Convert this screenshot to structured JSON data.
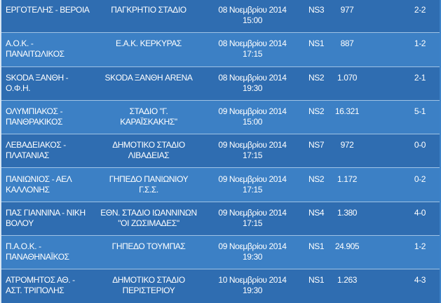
{
  "table": {
    "rows": [
      {
        "match": [
          "ΕΡΓΟΤΕΛΗΣ - ΒΕΡΟΙΑ"
        ],
        "stadium": [
          "ΠΑΓΚΡΗΤΙΟ ΣΤΑΔΙΟ"
        ],
        "date": "08 Νοεμβρίου 2014",
        "time": "15:00",
        "code": "NS3",
        "attendance": "977",
        "score": "2-2"
      },
      {
        "match": [
          "Α.Ο.Κ. -",
          "ΠΑΝΑΙΤΩΛΙΚΟΣ"
        ],
        "stadium": [
          "Ε.Α.Κ. ΚΕΡΚΥΡΑΣ"
        ],
        "date": "08 Νοεμβρίου 2014",
        "time": "17:15",
        "code": "NS1",
        "attendance": "887",
        "score": "1-2"
      },
      {
        "match": [
          "SKODA ΞΑΝΘΗ -",
          "Ο.Φ.Η."
        ],
        "stadium": [
          "SKODA ΞΑΝΘΗ ARENA"
        ],
        "date": "08 Νοεμβρίου 2014",
        "time": "19:30",
        "code": "NS2",
        "attendance": "1.070",
        "score": "2-1"
      },
      {
        "match": [
          "ΟΛΥΜΠΙΑΚΟΣ -",
          "ΠΑΝΘΡΑΚΙΚΟΣ"
        ],
        "stadium": [
          "ΣΤΑΔΙΟ \"Γ.",
          "ΚΑΡΑΪΣΚΑΚΗΣ\""
        ],
        "date": "09 Νοεμβρίου 2014",
        "time": "15:00",
        "code": "NS2",
        "attendance": "16.321",
        "score": "5-1"
      },
      {
        "match": [
          "ΛΕΒΑΔΕΙΑΚΟΣ -",
          "ΠΛΑΤΑΝΙΑΣ"
        ],
        "stadium": [
          "ΔΗΜΟΤΙΚΟ ΣΤΑΔΙΟ",
          "ΛΙΒΑΔΕΙΑΣ"
        ],
        "date": "09 Νοεμβρίου 2014",
        "time": "17:15",
        "code": "NS7",
        "attendance": "972",
        "score": "0-0"
      },
      {
        "match": [
          "ΠΑΝΙΩΝΙΟΣ - ΑΕΛ",
          "ΚΑΛΛΟΝΗΣ"
        ],
        "stadium": [
          "ΓΗΠΕΔΟ ΠΑΝΙΩΝΙΟΥ",
          "Γ.Σ.Σ."
        ],
        "date": "09 Νοεμβρίου 2014",
        "time": "17:15",
        "code": "NS2",
        "attendance": "1.172",
        "score": "0-2"
      },
      {
        "match": [
          "ΠΑΣ ΓΙΑΝΝΙΝΑ - ΝΙΚΗ",
          "ΒΟΛΟΥ"
        ],
        "stadium": [
          "ΕΘΝ. ΣΤΑΔΙΟ ΙΩΑΝΝΙΝΩΝ",
          "\"ΟΙ ΖΩΣΙΜΑΔΕΣ\""
        ],
        "date": "09 Νοεμβρίου 2014",
        "time": "17:15",
        "code": "NS4",
        "attendance": "1.380",
        "score": "4-0"
      },
      {
        "match": [
          "Π.Α.Ο.Κ. -",
          "ΠΑΝΑΘΗΝΑΪΚΟΣ"
        ],
        "stadium": [
          "ΓΗΠΕΔΟ ΤΟΥΜΠΑΣ"
        ],
        "date": "09 Νοεμβρίου 2014",
        "time": "19:30",
        "code": "NS1",
        "attendance": "24.905",
        "score": "1-2"
      },
      {
        "match": [
          "ΑΤΡΟΜΗΤΟΣ ΑΘ. -",
          "ΑΣΤ. ΤΡΙΠΟΛΗΣ"
        ],
        "stadium": [
          "ΔΗΜΟΤΙΚΟ ΣΤΑΔΙΟ",
          "ΠΕΡΙΣΤΕΡΙΟΥ"
        ],
        "date": "10 Νοεμβρίου 2014",
        "time": "19:30",
        "code": "NS1",
        "attendance": "1.263",
        "score": "4-3"
      }
    ]
  }
}
